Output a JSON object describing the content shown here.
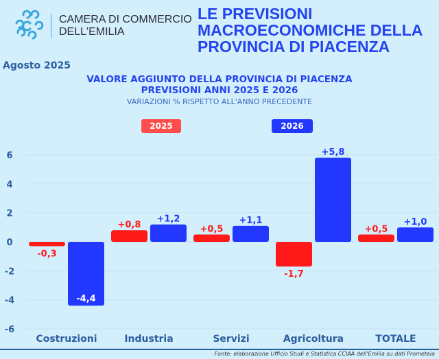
{
  "header": {
    "org_line1": "CAMERA DI COMMERCIO",
    "org_line2": "DELL'EMILIA",
    "headline": [
      "LE PREVISIONI",
      "MACROECONOMICHE DELLA",
      "PROVINCIA DI PIACENZA"
    ],
    "date": "Agosto 2025"
  },
  "footer": {
    "source": "Fonte: elaborazione Ufficio Studi e Statistica CCIAA dell'Emilia su dati Prometeia"
  },
  "chart_data": {
    "type": "bar",
    "title": "VALORE AGGIUNTO DELLA PROVINCIA DI PIACENZA",
    "subtitle": "PREVISIONI ANNI 2025 E 2026",
    "note": "VARIAZIONI % RISPETTO ALL'ANNO PRECEDENTE",
    "categories": [
      "Costruzioni",
      "Industria",
      "Servizi",
      "Agricoltura",
      "TOTALE"
    ],
    "series": [
      {
        "name": "2025",
        "color": "#ff1a1a",
        "values": [
          -0.3,
          0.8,
          0.5,
          -1.7,
          0.5
        ],
        "labels": [
          "-0,3",
          "+0,8",
          "+0,5",
          "-1,7",
          "+0,5"
        ]
      },
      {
        "name": "2026",
        "color": "#2238ff",
        "values": [
          -4.4,
          1.2,
          1.1,
          5.8,
          1.0
        ],
        "labels": [
          "-4,4",
          "+1,2",
          "+1,1",
          "+5,8",
          "+1,0"
        ]
      }
    ],
    "ylim": [
      -6,
      6
    ],
    "yticks": [
      "6",
      "4",
      "2",
      "0",
      "-2",
      "-4",
      "-6"
    ],
    "ytick_values": [
      6,
      4,
      2,
      0,
      -2,
      -4,
      -6
    ],
    "grid": true,
    "legend": "top"
  }
}
